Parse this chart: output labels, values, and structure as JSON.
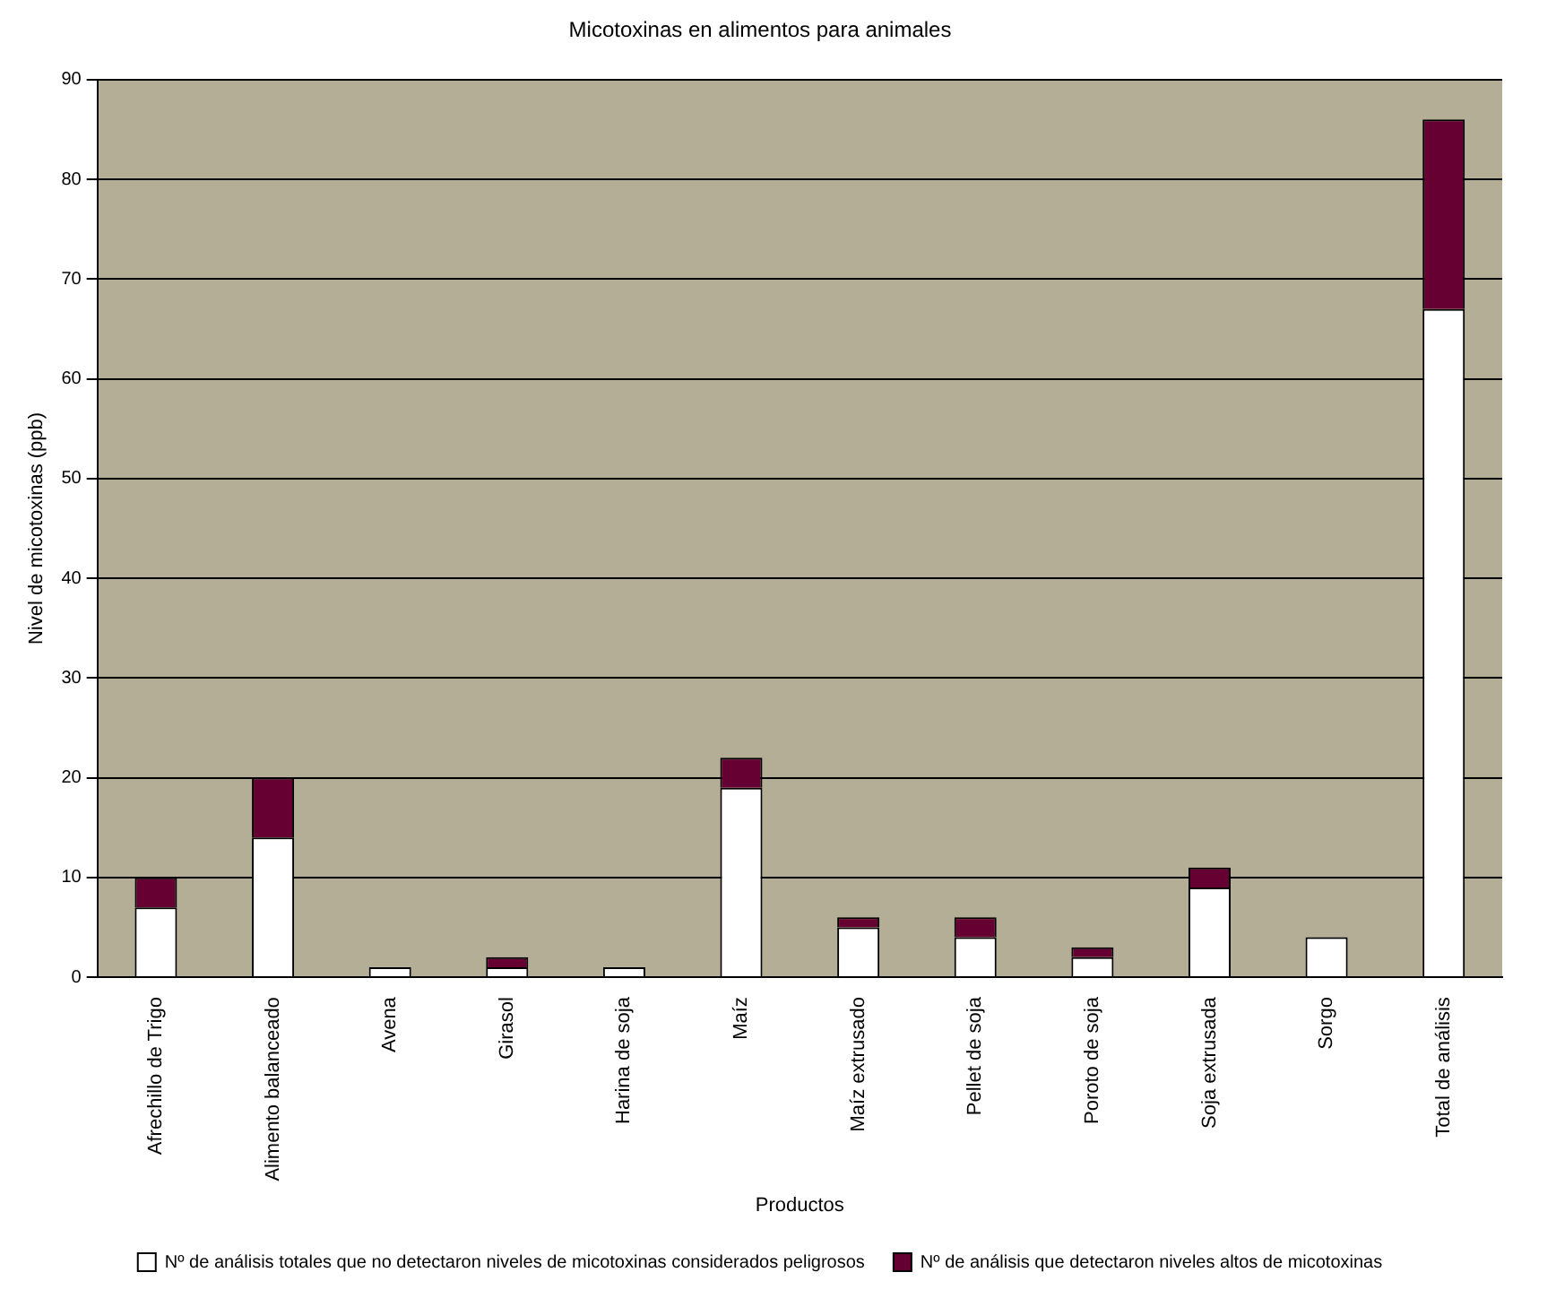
{
  "chart_data": {
    "type": "bar",
    "title": "Micotoxinas en alimentos para animales",
    "xlabel": "Productos",
    "ylabel": "Nivel de micotoxinas (ppb)",
    "categories": [
      "Afrechillo de Trigo",
      "Alimento balanceado",
      "Avena",
      "Girasol",
      "Harina de soja",
      "Maíz",
      "Maíz extrusado",
      "Pellet de soja",
      "Poroto de soja",
      "Soja extrusada",
      "Sorgo",
      "Total de análisis"
    ],
    "series": [
      {
        "name": "Nº de análisis totales que no detectaron niveles de micotoxinas considerados peligrosos",
        "color": "#ffffff",
        "values": [
          7,
          14,
          1,
          1,
          1,
          19,
          5,
          4,
          2,
          9,
          4,
          67
        ]
      },
      {
        "name": "Nº de análisis que detectaron niveles altos de micotoxinas",
        "color": "#660033",
        "values": [
          3,
          6,
          0,
          1,
          0,
          3,
          1,
          2,
          1,
          2,
          0,
          19
        ]
      }
    ],
    "stacked": true,
    "ylim": [
      0,
      90
    ],
    "yticks": [
      0,
      10,
      20,
      30,
      40,
      50,
      60,
      70,
      80,
      90
    ],
    "grid": "y",
    "legend": "bottom"
  }
}
